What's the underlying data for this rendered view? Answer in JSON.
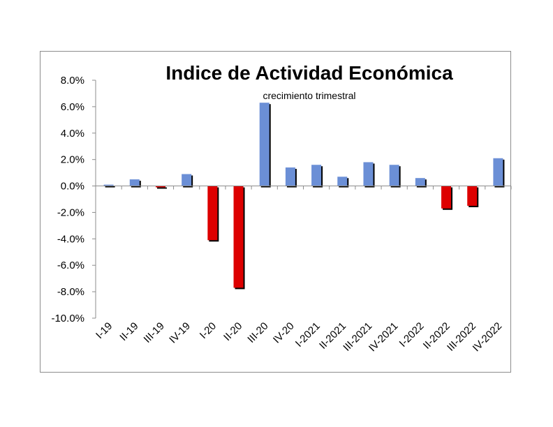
{
  "chart_data": {
    "type": "bar",
    "title": "Indice de Actividad Económica",
    "subtitle": "crecimiento trimestral",
    "categories": [
      "I-19",
      "II-19",
      "III-19",
      "IV-19",
      "I-20",
      "II-20",
      "III-20",
      "IV-20",
      "I-2021",
      "II-2021",
      "III-2021",
      "IV-2021",
      "I-2022",
      "II-2022",
      "III-2022",
      "IV-2022"
    ],
    "values": [
      0.1,
      0.5,
      -0.1,
      0.9,
      -4.1,
      -7.7,
      6.3,
      1.4,
      1.6,
      0.7,
      1.8,
      1.6,
      0.6,
      -1.7,
      -1.5,
      2.1
    ],
    "ylim": [
      -10,
      8
    ],
    "yticks": [
      8,
      6,
      4,
      2,
      0,
      -2,
      -4,
      -6,
      -8,
      -10
    ],
    "ytick_labels": [
      "8.0%",
      "6.0%",
      "4.0%",
      "2.0%",
      "0.0%",
      "-2.0%",
      "-4.0%",
      "-6.0%",
      "-8.0%",
      "-10.0%"
    ],
    "grid": false,
    "legend": "none",
    "colors": {
      "positive": "#6b8fd6",
      "negative": "#dd0000",
      "shadow": "#000000",
      "axis": "#8c8c8c"
    }
  }
}
